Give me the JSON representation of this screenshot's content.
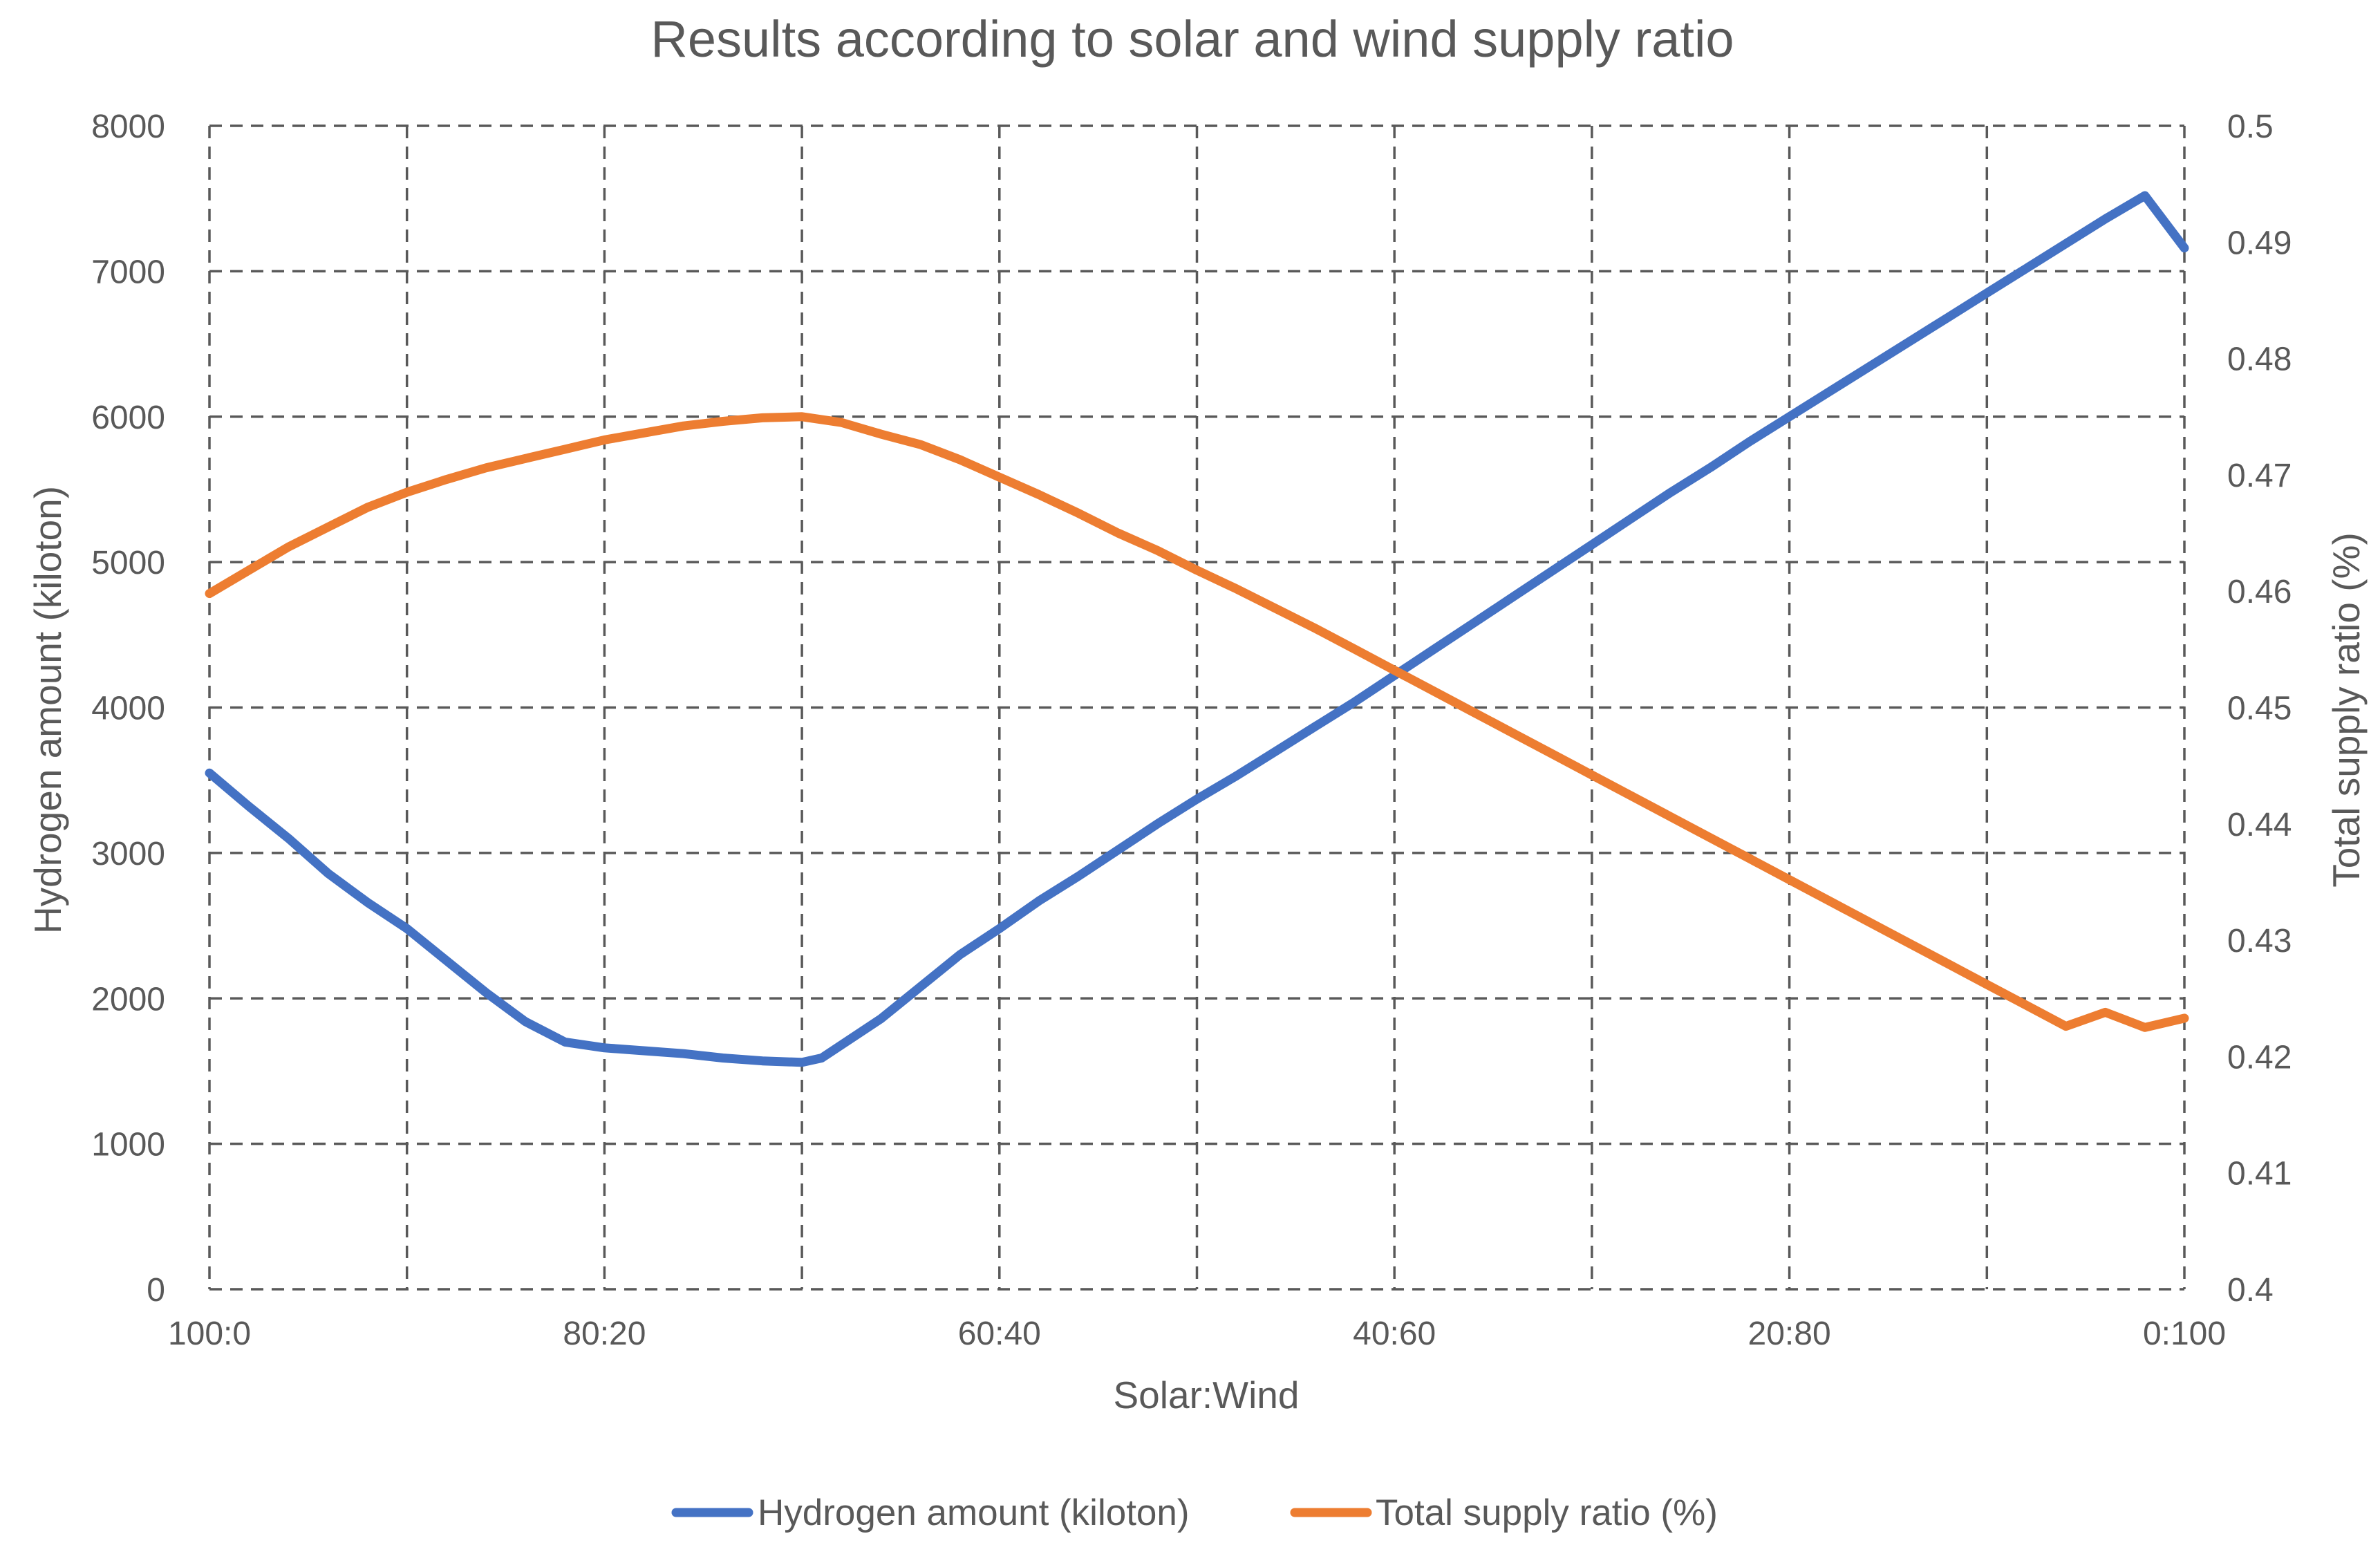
{
  "chart_data": {
    "type": "line",
    "title": "Results according to solar and wind supply ratio",
    "xlabel": "Solar:Wind",
    "ylabel": "Hydrogen amount (kiloton)",
    "y2label": "Total supply ratio (%)",
    "grid": true,
    "legend_position": "bottom",
    "x_range": [
      0,
      100
    ],
    "x_tick_labels": [
      {
        "x": 0,
        "label": "100:0"
      },
      {
        "x": 20,
        "label": "80:20"
      },
      {
        "x": 40,
        "label": "60:40"
      },
      {
        "x": 60,
        "label": "40:60"
      },
      {
        "x": 80,
        "label": "20:80"
      },
      {
        "x": 100,
        "label": "0:100"
      }
    ],
    "x_gridlines": [
      0,
      10,
      20,
      30,
      40,
      50,
      60,
      70,
      80,
      90,
      100
    ],
    "ylim": [
      0,
      8000
    ],
    "y_ticks": [
      0,
      1000,
      2000,
      3000,
      4000,
      5000,
      6000,
      7000,
      8000
    ],
    "y_tick_labels": [
      "0",
      "1000",
      "2000",
      "3000",
      "4000",
      "5000",
      "6000",
      "7000",
      "8000"
    ],
    "y2lim": [
      0.4,
      0.5
    ],
    "y2_ticks": [
      0.4,
      0.41,
      0.42,
      0.43,
      0.44,
      0.45,
      0.46,
      0.47,
      0.48,
      0.49,
      0.5
    ],
    "y2_tick_labels": [
      "0.4",
      "0.41",
      "0.42",
      "0.43",
      "0.44",
      "0.45",
      "0.46",
      "0.47",
      "0.48",
      "0.49",
      "0.5"
    ],
    "series": [
      {
        "name": "Hydrogen amount (kiloton)",
        "axis": "left",
        "color": "#4472C4",
        "x": [
          0,
          2,
          4,
          6,
          8,
          10,
          12,
          14,
          16,
          18,
          20,
          22,
          24,
          26,
          28,
          30,
          31,
          34,
          36,
          38,
          40,
          42,
          44,
          46,
          48,
          50,
          52,
          54,
          56,
          58,
          60,
          62,
          64,
          66,
          68,
          70,
          72,
          74,
          76,
          78,
          80,
          82,
          84,
          86,
          88,
          90,
          92,
          94,
          96,
          98,
          100
        ],
        "values": [
          3550,
          3320,
          3100,
          2860,
          2660,
          2480,
          2260,
          2040,
          1840,
          1700,
          1660,
          1640,
          1620,
          1590,
          1570,
          1560,
          1590,
          1860,
          2080,
          2300,
          2480,
          2670,
          2840,
          3020,
          3200,
          3370,
          3530,
          3700,
          3870,
          4040,
          4220,
          4400,
          4580,
          4760,
          4940,
          5120,
          5300,
          5480,
          5650,
          5830,
          6000,
          6170,
          6340,
          6510,
          6680,
          6850,
          7020,
          7190,
          7360,
          7520,
          7160
        ]
      },
      {
        "name": "Total supply ratio (%)",
        "axis": "right",
        "color": "#ED7D31",
        "x": [
          0,
          2,
          4,
          6,
          8,
          10,
          12,
          14,
          16,
          18,
          20,
          22,
          24,
          26,
          28,
          30,
          32,
          34,
          36,
          38,
          40,
          42,
          44,
          46,
          48,
          50,
          52,
          54,
          56,
          58,
          60,
          62,
          64,
          66,
          68,
          70,
          72,
          74,
          76,
          78,
          80,
          82,
          84,
          86,
          88,
          90,
          92,
          94,
          96,
          98,
          100
        ],
        "values": [
          0.4598,
          0.4618,
          0.4638,
          0.4655,
          0.4672,
          0.4685,
          0.4696,
          0.4706,
          0.4714,
          0.4722,
          0.473,
          0.4736,
          0.4742,
          0.4746,
          0.4749,
          0.475,
          0.4745,
          0.4735,
          0.4726,
          0.4713,
          0.4698,
          0.4683,
          0.4667,
          0.465,
          0.4635,
          0.4618,
          0.4602,
          0.4585,
          0.4568,
          0.455,
          0.4532,
          0.4514,
          0.4496,
          0.4478,
          0.446,
          0.4442,
          0.4424,
          0.4406,
          0.4388,
          0.437,
          0.4352,
          0.4334,
          0.4316,
          0.4298,
          0.428,
          0.4262,
          0.4244,
          0.4226,
          0.4238,
          0.4225,
          0.4233
        ]
      }
    ]
  }
}
